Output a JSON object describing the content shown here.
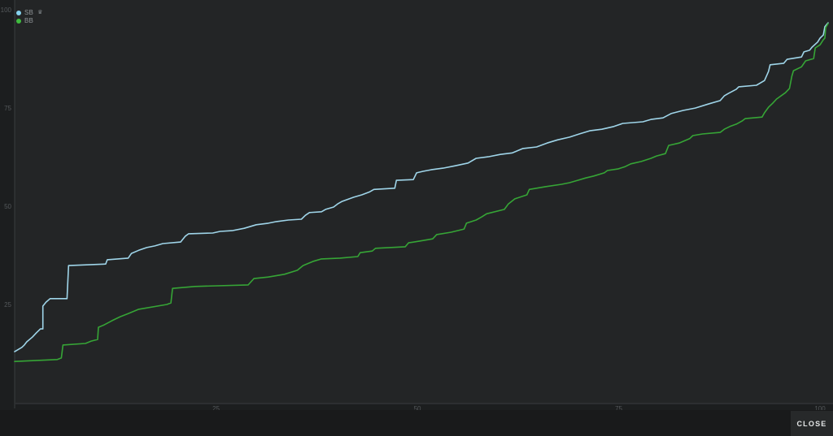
{
  "colors": {
    "page_background": "#1c1e1f",
    "plot_background": "#232526",
    "axis_line": "#3a3d3f",
    "baseline": "#2d2f31",
    "tick_text": "#54585b",
    "sb_line": "#9fd5e9",
    "sb_dot": "#86d2ee",
    "bb_line": "#36a536",
    "bb_dot": "#3fbc3f"
  },
  "legend": {
    "items": [
      {
        "label": "SB",
        "icon": "crown-icon",
        "icon_char": "♛",
        "color": "#86d2ee"
      },
      {
        "label": "BB",
        "icon": "",
        "icon_char": "",
        "color": "#3fbc3f"
      }
    ]
  },
  "close_button": {
    "label": "CLOSE"
  },
  "chart_data": {
    "type": "line",
    "title": "",
    "xlabel": "",
    "ylabel": "",
    "grid": false,
    "legend_position": "top-left",
    "xlim": [
      0,
      101
    ],
    "ylim": [
      0,
      102.7
    ],
    "x_ticks": [
      25,
      50,
      75,
      100
    ],
    "y_ticks": [
      100,
      75,
      50,
      25
    ],
    "line_style": "step-cumulative",
    "series": [
      {
        "name": "SB",
        "color": "#9fd5e9",
        "points": [
          [
            0,
            13.2
          ],
          [
            0.9,
            14.3
          ],
          [
            1.2,
            14.9
          ],
          [
            1.5,
            15.7
          ],
          [
            2.2,
            16.9
          ],
          [
            2.7,
            18
          ],
          [
            3.2,
            19
          ],
          [
            3.5,
            19
          ],
          [
            3.5,
            24.8
          ],
          [
            3.9,
            25.8
          ],
          [
            4.4,
            26.7
          ],
          [
            6.5,
            26.7
          ],
          [
            6.7,
            35.1
          ],
          [
            11.3,
            35.5
          ],
          [
            11.5,
            36.6
          ],
          [
            14.1,
            37
          ],
          [
            14.5,
            38.2
          ],
          [
            15.4,
            39
          ],
          [
            16.4,
            39.7
          ],
          [
            17.4,
            40.1
          ],
          [
            18.4,
            40.7
          ],
          [
            20.6,
            41.1
          ],
          [
            21.2,
            42.6
          ],
          [
            21.6,
            43.2
          ],
          [
            24.6,
            43.4
          ],
          [
            25.5,
            43.8
          ],
          [
            27,
            44
          ],
          [
            28.5,
            44.6
          ],
          [
            30,
            45.5
          ],
          [
            31.5,
            45.9
          ],
          [
            32.5,
            46.3
          ],
          [
            34,
            46.7
          ],
          [
            35.6,
            46.9
          ],
          [
            36.1,
            47.9
          ],
          [
            36.6,
            48.6
          ],
          [
            38.1,
            48.8
          ],
          [
            38.6,
            49.4
          ],
          [
            39.6,
            50
          ],
          [
            40.1,
            50.8
          ],
          [
            40.6,
            51.4
          ],
          [
            42.1,
            52.5
          ],
          [
            43.1,
            53.1
          ],
          [
            44.1,
            53.9
          ],
          [
            44.6,
            54.5
          ],
          [
            47.2,
            54.8
          ],
          [
            47.4,
            56.8
          ],
          [
            49.5,
            57
          ],
          [
            49.9,
            58.7
          ],
          [
            50.7,
            59.1
          ],
          [
            51.7,
            59.5
          ],
          [
            53.2,
            59.9
          ],
          [
            54.7,
            60.5
          ],
          [
            56.3,
            61.2
          ],
          [
            57.3,
            62.4
          ],
          [
            58.8,
            62.8
          ],
          [
            60.3,
            63.4
          ],
          [
            61.8,
            63.8
          ],
          [
            63.1,
            64.9
          ],
          [
            64.8,
            65.3
          ],
          [
            66.1,
            66.3
          ],
          [
            67.4,
            67.1
          ],
          [
            68.9,
            67.8
          ],
          [
            70.1,
            68.6
          ],
          [
            71.4,
            69.4
          ],
          [
            72.9,
            69.8
          ],
          [
            74.4,
            70.5
          ],
          [
            75.5,
            71.3
          ],
          [
            78,
            71.7
          ],
          [
            79,
            72.3
          ],
          [
            80.5,
            72.7
          ],
          [
            81.5,
            73.8
          ],
          [
            83,
            74.6
          ],
          [
            84.5,
            75.2
          ],
          [
            86.1,
            76.2
          ],
          [
            87.6,
            77.1
          ],
          [
            88.1,
            78.3
          ],
          [
            88.6,
            78.9
          ],
          [
            89.6,
            80
          ],
          [
            89.9,
            80.6
          ],
          [
            92.1,
            81
          ],
          [
            93.1,
            82.2
          ],
          [
            93.6,
            84.5
          ],
          [
            93.8,
            86.2
          ],
          [
            95.5,
            86.6
          ],
          [
            95.9,
            87.6
          ],
          [
            97.7,
            88.2
          ],
          [
            98,
            89.5
          ],
          [
            98.7,
            89.9
          ],
          [
            99,
            90.7
          ],
          [
            99.7,
            92
          ],
          [
            100,
            93
          ],
          [
            100.4,
            93.8
          ],
          [
            100.6,
            95.9
          ],
          [
            101,
            96.9
          ]
        ]
      },
      {
        "name": "BB",
        "color": "#36a536",
        "points": [
          [
            0,
            10.7
          ],
          [
            5.3,
            11.2
          ],
          [
            5.8,
            11.6
          ],
          [
            6,
            14.9
          ],
          [
            8.8,
            15.3
          ],
          [
            9.5,
            15.9
          ],
          [
            10.3,
            16.3
          ],
          [
            10.4,
            19.4
          ],
          [
            11.1,
            20
          ],
          [
            12.1,
            21.1
          ],
          [
            13.1,
            22.1
          ],
          [
            14.1,
            22.9
          ],
          [
            15.4,
            24
          ],
          [
            18.9,
            25.2
          ],
          [
            19.4,
            25.6
          ],
          [
            19.6,
            29.3
          ],
          [
            22.4,
            29.8
          ],
          [
            29,
            30.2
          ],
          [
            29.7,
            31.8
          ],
          [
            31.5,
            32.2
          ],
          [
            33.5,
            32.9
          ],
          [
            35.1,
            33.9
          ],
          [
            35.8,
            35.1
          ],
          [
            37.1,
            36.2
          ],
          [
            38.1,
            36.8
          ],
          [
            40.4,
            37
          ],
          [
            42.6,
            37.4
          ],
          [
            42.9,
            38.4
          ],
          [
            44.4,
            38.8
          ],
          [
            44.8,
            39.5
          ],
          [
            48.5,
            39.9
          ],
          [
            48.9,
            40.9
          ],
          [
            50.2,
            41.3
          ],
          [
            51.9,
            41.9
          ],
          [
            52.4,
            43
          ],
          [
            54.2,
            43.6
          ],
          [
            55.8,
            44.4
          ],
          [
            56.1,
            45.9
          ],
          [
            57.3,
            46.7
          ],
          [
            58,
            47.5
          ],
          [
            58.6,
            48.3
          ],
          [
            60.8,
            49.4
          ],
          [
            61.3,
            50.8
          ],
          [
            62.1,
            52.1
          ],
          [
            63.6,
            53.1
          ],
          [
            63.9,
            54.5
          ],
          [
            65.9,
            55.2
          ],
          [
            67.9,
            55.8
          ],
          [
            68.9,
            56.2
          ],
          [
            69.9,
            56.8
          ],
          [
            70.9,
            57.4
          ],
          [
            71.9,
            57.9
          ],
          [
            73.2,
            58.7
          ],
          [
            73.6,
            59.3
          ],
          [
            74.9,
            59.7
          ],
          [
            75.8,
            60.3
          ],
          [
            76.5,
            61
          ],
          [
            77.8,
            61.6
          ],
          [
            79,
            62.4
          ],
          [
            79.7,
            63
          ],
          [
            80.8,
            63.6
          ],
          [
            81.2,
            65.7
          ],
          [
            82.5,
            66.3
          ],
          [
            83.8,
            67.4
          ],
          [
            84.2,
            68.2
          ],
          [
            85.4,
            68.6
          ],
          [
            87.6,
            69
          ],
          [
            88.1,
            69.8
          ],
          [
            88.8,
            70.5
          ],
          [
            89.6,
            71.1
          ],
          [
            90.3,
            71.9
          ],
          [
            90.7,
            72.5
          ],
          [
            92.8,
            72.9
          ],
          [
            93.1,
            74
          ],
          [
            93.6,
            75.4
          ],
          [
            94.1,
            76.4
          ],
          [
            94.6,
            77.5
          ],
          [
            95.7,
            79.1
          ],
          [
            96.2,
            80.2
          ],
          [
            96.5,
            83.3
          ],
          [
            96.7,
            84.7
          ],
          [
            97.7,
            85.7
          ],
          [
            98.2,
            87.2
          ],
          [
            99.2,
            87.8
          ],
          [
            99.4,
            90.5
          ],
          [
            100,
            91.3
          ],
          [
            100.4,
            92.6
          ],
          [
            100.6,
            93
          ],
          [
            100.7,
            95.7
          ],
          [
            101,
            96.7
          ]
        ]
      }
    ]
  }
}
